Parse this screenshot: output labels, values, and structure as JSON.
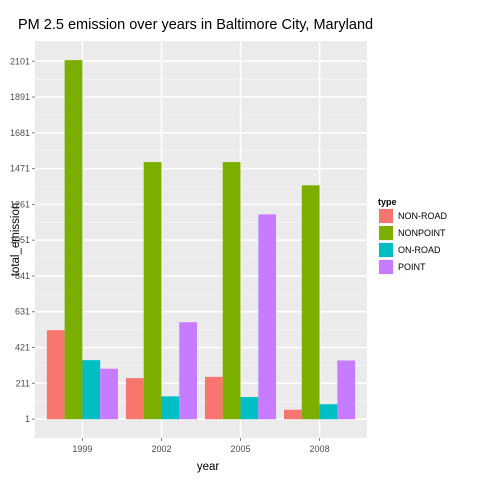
{
  "chart_data": {
    "type": "bar",
    "title": "PM 2.5 emission over years in Baltimore City, Maryland",
    "xlabel": "year",
    "ylabel": "total_emission",
    "categories": [
      "1999",
      "2002",
      "2005",
      "2008"
    ],
    "yticks": [
      1,
      211,
      421,
      631,
      841,
      1051,
      1261,
      1471,
      1681,
      1891,
      2101
    ],
    "ytick_labels": [
      "1",
      "211",
      "421",
      "631",
      "841",
      "1051",
      "1261",
      "1471",
      "1681",
      "1891",
      "2101"
    ],
    "ylim": [
      -110,
      2220
    ],
    "legend": {
      "title": "type",
      "placement": "right"
    },
    "grid": true,
    "series": [
      {
        "name": "NON-ROAD",
        "color": "#F8766D",
        "values": [
          522.9,
          241.4,
          248.9,
          55.8
        ]
      },
      {
        "name": "NONPOINT",
        "color": "#7CAE00",
        "values": [
          2107.6,
          1509.5,
          1509.5,
          1373.2
        ]
      },
      {
        "name": "ON-ROAD",
        "color": "#00BFC4",
        "values": [
          346.8,
          134.3,
          130.4,
          88.3
        ]
      },
      {
        "name": "POINT",
        "color": "#C77CFF",
        "values": [
          296.8,
          569.3,
          1202.5,
          344.98
        ]
      }
    ]
  }
}
